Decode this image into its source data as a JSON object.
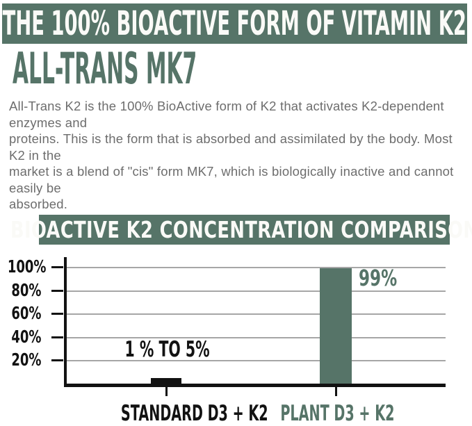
{
  "colors": {
    "sage": "#567468",
    "banner_text": "#fafaf7",
    "paragraph_gray": "#6d6d6d",
    "chart_black": "#121212",
    "gridline_gray": "#a6a6a6"
  },
  "banner": {
    "title": "THE 100% BIOACTIVE FORM OF VITAMIN K2"
  },
  "heading": {
    "title": "ALL-TRANS MK7"
  },
  "intro": {
    "lines": [
      "All-Trans K2 is the 100% BioActive form of K2 that activates K2-dependent enzymes and",
      "proteins. This is the form that is absorbed and assimilated by the body. Most K2 in the",
      "market is a blend of \"cis\" form MK7, which is biologically inactive and cannot easily be",
      "absorbed."
    ]
  },
  "chart_data": {
    "type": "bar",
    "title": "BIOACTIVE K2 CONCENTRATION COMPARISON",
    "categories": [
      "STANDARD D3 + K2",
      "PLANT D3 + K2"
    ],
    "values": [
      5,
      99
    ],
    "value_labels": [
      "1 % TO 5%",
      "99%"
    ],
    "bar_colors": [
      "#121212",
      "#567468"
    ],
    "category_label_colors": [
      "#121212",
      "#567468"
    ],
    "value_label_colors": [
      "#121212",
      "#567468"
    ],
    "ytick_values": [
      20,
      40,
      60,
      80,
      100
    ],
    "ytick_labels": [
      "20%",
      "40%",
      "60%",
      "80%",
      "100%"
    ],
    "ylim": [
      0,
      100
    ],
    "grid": true,
    "legend": false,
    "xlabel": "",
    "ylabel": ""
  }
}
